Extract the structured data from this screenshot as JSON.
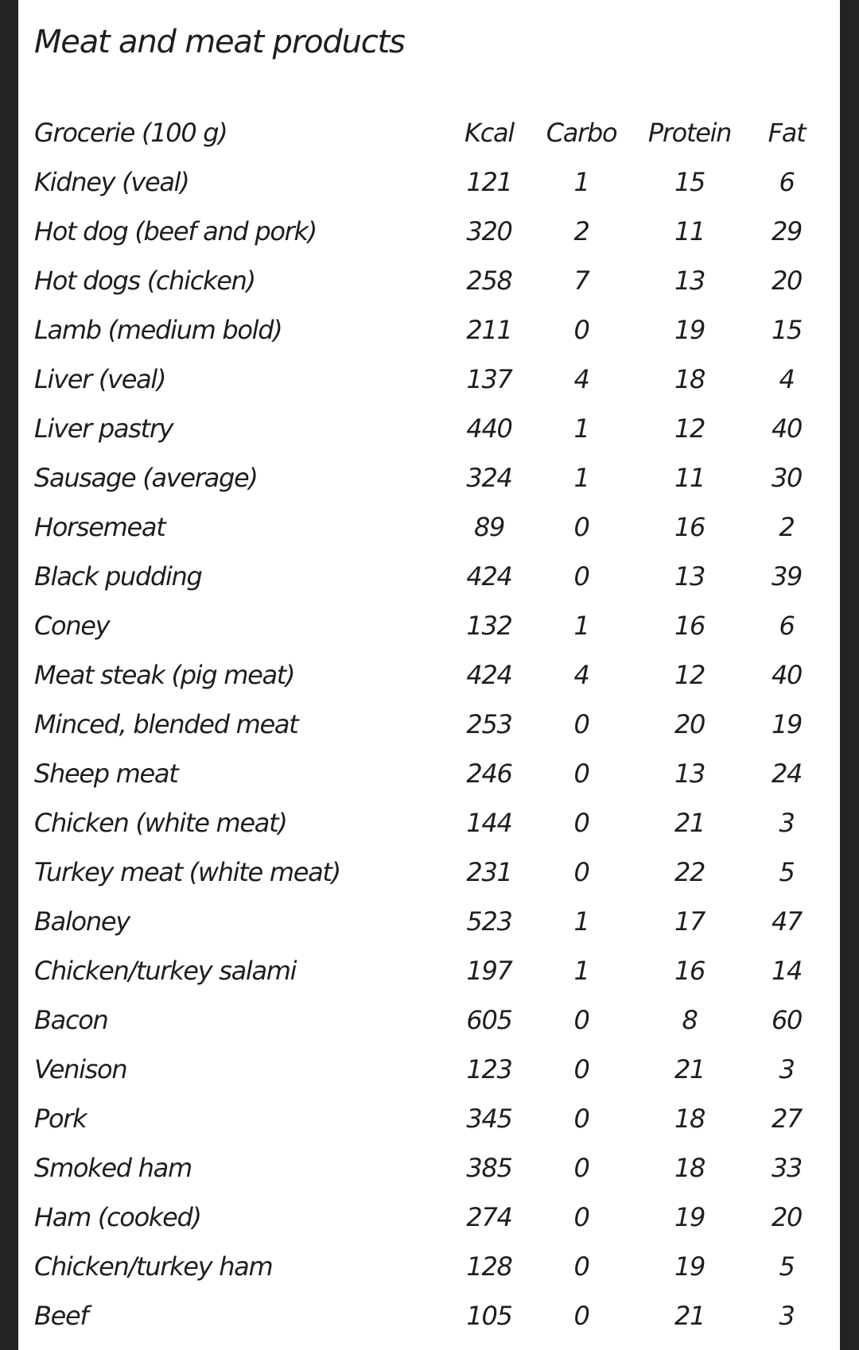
{
  "title": "Meat and meat products",
  "table": {
    "headers": {
      "name": "Grocerie (100 g)",
      "kcal": "Kcal",
      "carbo": "Carbo",
      "protein": "Protein",
      "fat": "Fat"
    },
    "rows": [
      {
        "name": "Kidney (veal)",
        "kcal": "121",
        "carbo": "1",
        "protein": "15",
        "fat": "6"
      },
      {
        "name": "Hot dog (beef and pork)",
        "kcal": "320",
        "carbo": "2",
        "protein": "11",
        "fat": "29"
      },
      {
        "name": "Hot dogs (chicken)",
        "kcal": "258",
        "carbo": "7",
        "protein": "13",
        "fat": "20"
      },
      {
        "name": "Lamb (medium bold)",
        "kcal": "211",
        "carbo": "0",
        "protein": "19",
        "fat": "15"
      },
      {
        "name": "Liver (veal)",
        "kcal": "137",
        "carbo": "4",
        "protein": "18",
        "fat": "4"
      },
      {
        "name": "Liver pastry",
        "kcal": "440",
        "carbo": "1",
        "protein": "12",
        "fat": "40"
      },
      {
        "name": "Sausage (average)",
        "kcal": "324",
        "carbo": "1",
        "protein": "11",
        "fat": "30"
      },
      {
        "name": "Horsemeat",
        "kcal": "89",
        "carbo": "0",
        "protein": "16",
        "fat": "2"
      },
      {
        "name": "Black pudding",
        "kcal": "424",
        "carbo": "0",
        "protein": "13",
        "fat": "39"
      },
      {
        "name": "Coney",
        "kcal": "132",
        "carbo": "1",
        "protein": "16",
        "fat": "6"
      },
      {
        "name": "Meat steak (pig meat)",
        "kcal": "424",
        "carbo": "4",
        "protein": "12",
        "fat": "40"
      },
      {
        "name": "Minced, blended meat",
        "kcal": "253",
        "carbo": "0",
        "protein": "20",
        "fat": "19"
      },
      {
        "name": "Sheep meat",
        "kcal": "246",
        "carbo": "0",
        "protein": "13",
        "fat": "24"
      },
      {
        "name": "Chicken (white meat)",
        "kcal": "144",
        "carbo": "0",
        "protein": "21",
        "fat": "3"
      },
      {
        "name": "Turkey meat (white meat)",
        "kcal": "231",
        "carbo": "0",
        "protein": "22",
        "fat": "5"
      },
      {
        "name": "Baloney",
        "kcal": "523",
        "carbo": "1",
        "protein": "17",
        "fat": "47"
      },
      {
        "name": "Chicken/turkey salami",
        "kcal": "197",
        "carbo": "1",
        "protein": "16",
        "fat": "14"
      },
      {
        "name": "Bacon",
        "kcal": "605",
        "carbo": "0",
        "protein": "8",
        "fat": "60"
      },
      {
        "name": "Venison",
        "kcal": "123",
        "carbo": "0",
        "protein": "21",
        "fat": "3"
      },
      {
        "name": "Pork",
        "kcal": "345",
        "carbo": "0",
        "protein": "18",
        "fat": "27"
      },
      {
        "name": "Smoked ham",
        "kcal": "385",
        "carbo": "0",
        "protein": "18",
        "fat": "33"
      },
      {
        "name": "Ham (cooked)",
        "kcal": "274",
        "carbo": "0",
        "protein": "19",
        "fat": "20"
      },
      {
        "name": "Chicken/turkey ham",
        "kcal": "128",
        "carbo": "0",
        "protein": "19",
        "fat": "5"
      },
      {
        "name": "Beef",
        "kcal": "105",
        "carbo": "0",
        "protein": "21",
        "fat": "3"
      }
    ]
  }
}
